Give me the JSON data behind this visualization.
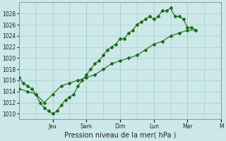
{
  "title": "",
  "xlabel": "Pression niveau de la mer( hPa )",
  "background_color": "#cce8e8",
  "grid_color": "#aacccc",
  "line_color": "#1a6b1a",
  "ylim": [
    1009,
    1030
  ],
  "yticks": [
    1010,
    1012,
    1014,
    1016,
    1018,
    1020,
    1022,
    1024,
    1026,
    1028
  ],
  "xlim": [
    0,
    24
  ],
  "day_tick_positions": [
    4,
    8,
    12,
    16,
    20,
    24
  ],
  "day_tick_labels": [
    "Jeu",
    "Sam",
    "Dim",
    "Lun",
    "Mar",
    "M"
  ],
  "minor_tick_positions": [
    0,
    2,
    4,
    6,
    8,
    10,
    12,
    14,
    16,
    18,
    20,
    22,
    24
  ],
  "line1_x": [
    0,
    1,
    2,
    3,
    4,
    5,
    6,
    7,
    8,
    9,
    10,
    11,
    12,
    13,
    14,
    15,
    16,
    17,
    18,
    19,
    20,
    21
  ],
  "line1_y": [
    1014.5,
    1014.0,
    1013.5,
    1012.0,
    1013.5,
    1015.0,
    1015.5,
    1016.0,
    1016.5,
    1017.0,
    1018.0,
    1019.0,
    1019.5,
    1020.0,
    1020.5,
    1021.5,
    1022.5,
    1023.0,
    1024.0,
    1024.5,
    1025.0,
    1025.0
  ],
  "line2_x": [
    0,
    0.5,
    1,
    1.5,
    2,
    2.5,
    3,
    3.5,
    4,
    4.5,
    5,
    5.5,
    6,
    6.5,
    7,
    7.5,
    8,
    8.5,
    9,
    9.5,
    10,
    10.5,
    11,
    11.5,
    12,
    12.5,
    13,
    13.5,
    14,
    14.5,
    15,
    15.5,
    16,
    16.5,
    17,
    17.5,
    18,
    18.5,
    19,
    19.5,
    20,
    20.5,
    21
  ],
  "line2_y": [
    1016.5,
    1015.5,
    1015.0,
    1014.5,
    1013.5,
    1012.0,
    1011.0,
    1010.5,
    1010.0,
    1010.5,
    1011.5,
    1012.5,
    1013.0,
    1013.5,
    1015.0,
    1016.0,
    1017.0,
    1018.0,
    1019.0,
    1019.5,
    1020.5,
    1021.5,
    1022.0,
    1022.5,
    1023.5,
    1023.5,
    1024.5,
    1025.0,
    1026.0,
    1026.5,
    1027.0,
    1027.5,
    1027.0,
    1027.5,
    1028.5,
    1028.5,
    1029.0,
    1027.5,
    1027.5,
    1027.0,
    1025.5,
    1025.5,
    1025.0
  ]
}
